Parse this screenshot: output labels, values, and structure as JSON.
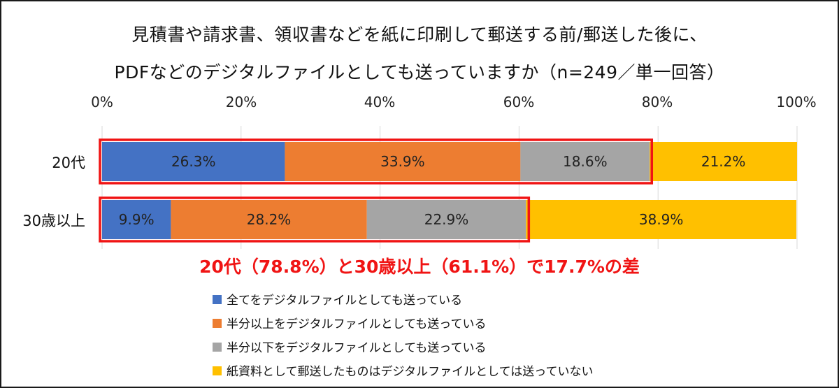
{
  "chart_data": {
    "type": "bar",
    "orientation": "horizontal",
    "stacked": true,
    "title_lines": [
      "見積書や請求書、領収書などを紙に印刷して郵送する前/郵送した後に、",
      "PDFなどのデジタルファイルとしても送っていますか（n=249／単一回答）"
    ],
    "x_ticks": [
      "0%",
      "20%",
      "40%",
      "60%",
      "80%",
      "100%"
    ],
    "xlim": [
      0,
      100
    ],
    "categories": [
      "20代",
      "30歳以上"
    ],
    "series": [
      {
        "name": "全てをデジタルファイルとしても送っている",
        "color": "#4472c4",
        "values": [
          26.3,
          9.9
        ],
        "labels": [
          "26.3%",
          "9.9%"
        ]
      },
      {
        "name": "半分以上をデジタルファイルとしても送っている",
        "color": "#ed7d31",
        "values": [
          33.9,
          28.2
        ],
        "labels": [
          "33.9%",
          "28.2%"
        ]
      },
      {
        "name": "半分以下をデジタルファイルとしても送っている",
        "color": "#a5a5a5",
        "values": [
          18.6,
          22.9
        ],
        "labels": [
          "18.6%",
          "22.9%"
        ]
      },
      {
        "name": "紙資料として郵送したものはデジタルファイルとしては送っていない",
        "color": "#ffc000",
        "values": [
          21.2,
          38.9
        ],
        "labels": [
          "21.2%",
          "38.9%"
        ]
      }
    ],
    "highlight_totals": [
      78.8,
      61.1
    ],
    "highlight_color": "#f01414",
    "annotation": "20代（78.8%）と30歳以上（61.1%）で17.7%の差",
    "legend_position": "bottom",
    "grid": true
  }
}
